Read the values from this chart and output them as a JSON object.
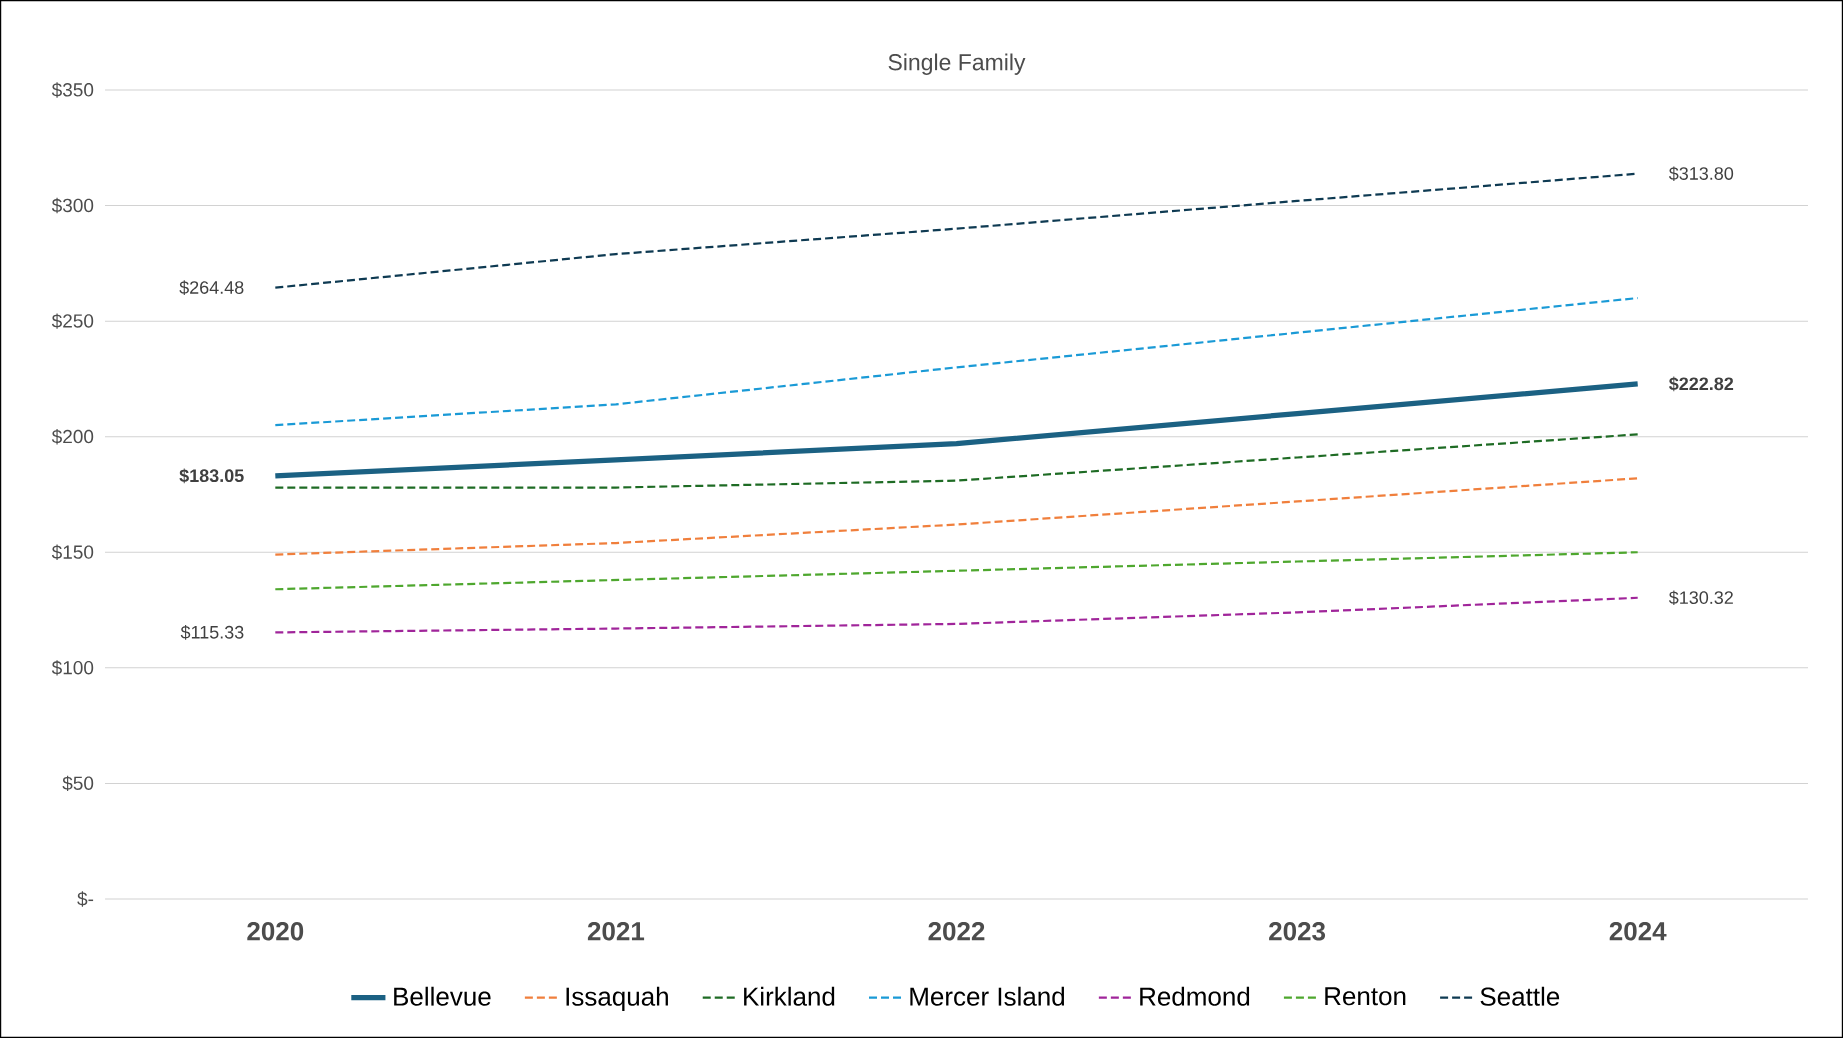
{
  "chart_data": {
    "type": "line",
    "title": "Single Family",
    "categories": [
      "2020",
      "2021",
      "2022",
      "2023",
      "2024"
    ],
    "ylim": [
      0,
      350
    ],
    "yticks": [
      {
        "value": 0,
        "label": "$-"
      },
      {
        "value": 50,
        "label": "$50"
      },
      {
        "value": 100,
        "label": "$100"
      },
      {
        "value": 150,
        "label": "$150"
      },
      {
        "value": 200,
        "label": "$200"
      },
      {
        "value": 250,
        "label": "$250"
      },
      {
        "value": 300,
        "label": "$300"
      },
      {
        "value": 350,
        "label": "$350"
      }
    ],
    "grid": "y",
    "legend": "bottom",
    "marker": "none",
    "series": [
      {
        "name": "Bellevue",
        "color": "#1b6183",
        "line_style": "solid",
        "values": [
          183.05,
          190,
          197,
          210,
          222.82
        ],
        "value_labels": [
          "**$183.05**",
          null,
          null,
          null,
          "**$222.82**"
        ]
      },
      {
        "name": "Issaquah",
        "color": "#f07f3c",
        "line_style": "dashed",
        "values": [
          149,
          154,
          162,
          172,
          182
        ]
      },
      {
        "name": "Kirkland",
        "color": "#1e6b24",
        "line_style": "dashed",
        "values": [
          178,
          178,
          181,
          191,
          201
        ]
      },
      {
        "name": "Mercer Island",
        "color": "#1a9ad6",
        "line_style": "dashed",
        "values": [
          205,
          214,
          230,
          245,
          260
        ]
      },
      {
        "name": "Redmond",
        "color": "#a0259a",
        "line_style": "dashed",
        "values": [
          115.33,
          117,
          119,
          124,
          130.32
        ],
        "value_labels": [
          "$115.33",
          null,
          null,
          null,
          "$130.32"
        ]
      },
      {
        "name": "Renton",
        "color": "#4ea72e",
        "line_style": "dashed",
        "values": [
          134,
          138,
          142,
          146,
          150
        ]
      },
      {
        "name": "Seattle",
        "color": "#0e3a52",
        "line_style": "dashed",
        "values": [
          264.48,
          279,
          290,
          302,
          313.8
        ],
        "value_labels": [
          "$264.48",
          null,
          null,
          null,
          "$313.80"
        ]
      }
    ]
  }
}
